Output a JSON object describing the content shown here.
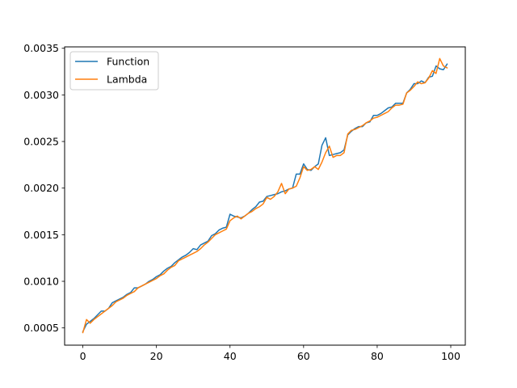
{
  "chart_data": {
    "type": "line",
    "title": "",
    "xlabel": "",
    "ylabel": "",
    "xlim": [
      -4.95,
      103.95
    ],
    "ylim": [
      0.000315,
      0.003515
    ],
    "xticks": [
      0,
      20,
      40,
      60,
      80,
      100
    ],
    "yticks": [
      0.0005,
      0.001,
      0.0015,
      0.002,
      0.0025,
      0.003,
      0.0035
    ],
    "ytick_labels": [
      "0.0005",
      "0.0010",
      "0.0015",
      "0.0020",
      "0.0025",
      "0.0030",
      "0.0035"
    ],
    "grid": false,
    "legend_position": "top-left",
    "x": [
      0,
      1,
      2,
      3,
      4,
      5,
      6,
      7,
      8,
      9,
      10,
      11,
      12,
      13,
      14,
      15,
      16,
      17,
      18,
      19,
      20,
      21,
      22,
      23,
      24,
      25,
      26,
      27,
      28,
      29,
      30,
      31,
      32,
      33,
      34,
      35,
      36,
      37,
      38,
      39,
      40,
      41,
      42,
      43,
      44,
      45,
      46,
      47,
      48,
      49,
      50,
      51,
      52,
      53,
      54,
      55,
      56,
      57,
      58,
      59,
      60,
      61,
      62,
      63,
      64,
      65,
      66,
      67,
      68,
      69,
      70,
      71,
      72,
      73,
      74,
      75,
      76,
      77,
      78,
      79,
      80,
      81,
      82,
      83,
      84,
      85,
      86,
      87,
      88,
      89,
      90,
      91,
      92,
      93,
      94,
      95,
      96,
      97,
      98,
      99
    ],
    "series": [
      {
        "name": "Function",
        "color": "#1f77b4",
        "values": [
          0.00046,
          0.00054,
          0.00057,
          0.0006,
          0.00064,
          0.00068,
          0.00068,
          0.00071,
          0.00077,
          0.00079,
          0.00081,
          0.00083,
          0.00086,
          0.00088,
          0.00093,
          0.00093,
          0.00095,
          0.00097,
          0.001,
          0.00102,
          0.00105,
          0.00107,
          0.00111,
          0.00114,
          0.00116,
          0.0012,
          0.00123,
          0.00126,
          0.00128,
          0.00131,
          0.00135,
          0.00134,
          0.00139,
          0.00141,
          0.00143,
          0.00149,
          0.00151,
          0.00155,
          0.00157,
          0.00158,
          0.00172,
          0.0017,
          0.00169,
          0.00168,
          0.0017,
          0.00173,
          0.00177,
          0.0018,
          0.00185,
          0.00186,
          0.00191,
          0.00192,
          0.00193,
          0.00194,
          0.00196,
          0.00197,
          0.00199,
          0.002,
          0.00215,
          0.00215,
          0.00226,
          0.0022,
          0.00219,
          0.00223,
          0.00226,
          0.00246,
          0.00254,
          0.00235,
          0.00236,
          0.00237,
          0.00238,
          0.00241,
          0.00257,
          0.00261,
          0.00264,
          0.00266,
          0.00266,
          0.0027,
          0.00271,
          0.00278,
          0.00278,
          0.0028,
          0.00283,
          0.00286,
          0.00287,
          0.00291,
          0.00291,
          0.00291,
          0.00302,
          0.00306,
          0.00312,
          0.00312,
          0.00315,
          0.00313,
          0.00319,
          0.0032,
          0.00331,
          0.00328,
          0.00327,
          0.00333
        ]
      },
      {
        "name": "Lambda",
        "color": "#ff7f0e",
        "values": [
          0.00045,
          0.00059,
          0.00055,
          0.00059,
          0.00062,
          0.00065,
          0.00068,
          0.00071,
          0.00074,
          0.00078,
          0.0008,
          0.00082,
          0.00085,
          0.00087,
          0.00089,
          0.00093,
          0.00095,
          0.00097,
          0.00099,
          0.00101,
          0.00103,
          0.00106,
          0.00108,
          0.00112,
          0.00115,
          0.00117,
          0.00122,
          0.00124,
          0.00126,
          0.00128,
          0.0013,
          0.00132,
          0.00135,
          0.00139,
          0.00142,
          0.00146,
          0.0015,
          0.00152,
          0.00154,
          0.00156,
          0.00165,
          0.00168,
          0.0017,
          0.00167,
          0.0017,
          0.00173,
          0.00175,
          0.00178,
          0.0018,
          0.00183,
          0.0019,
          0.00188,
          0.00191,
          0.00196,
          0.00205,
          0.00194,
          0.00199,
          0.002,
          0.00202,
          0.00211,
          0.00223,
          0.00219,
          0.0022,
          0.00223,
          0.0022,
          0.00228,
          0.00238,
          0.00245,
          0.00233,
          0.00235,
          0.00235,
          0.00238,
          0.00258,
          0.00262,
          0.00263,
          0.00265,
          0.00267,
          0.0027,
          0.00272,
          0.00275,
          0.00276,
          0.00278,
          0.0028,
          0.00282,
          0.00286,
          0.00289,
          0.00289,
          0.0029,
          0.00302,
          0.00305,
          0.00309,
          0.00314,
          0.00312,
          0.00313,
          0.00318,
          0.00326,
          0.00323,
          0.00339,
          0.00331,
          0.00329
        ]
      }
    ]
  }
}
